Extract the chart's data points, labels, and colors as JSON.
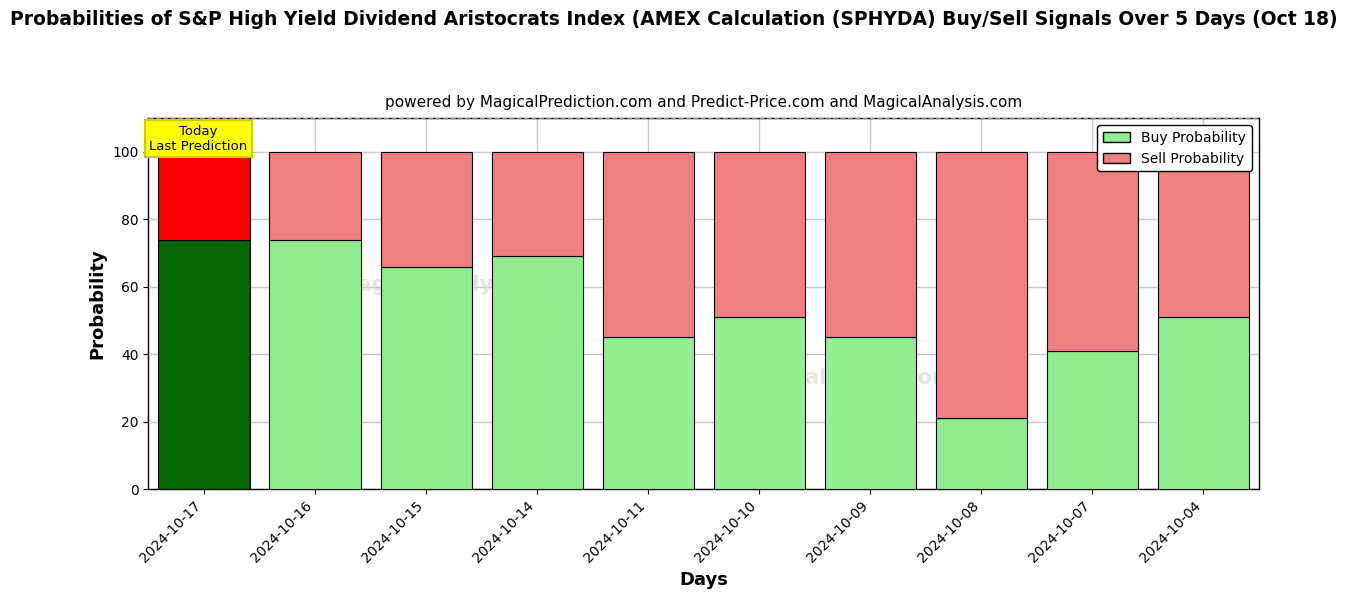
{
  "title": "Probabilities of S&P High Yield Dividend Aristocrats Index (AMEX Calculation (SPHYDA) Buy/Sell Signals Over 5 Days (Oct 18)",
  "subtitle": "powered by MagicalPrediction.com and Predict-Price.com and MagicalAnalysis.com",
  "xlabel": "Days",
  "ylabel": "Probability",
  "dates": [
    "2024-10-17",
    "2024-10-16",
    "2024-10-15",
    "2024-10-14",
    "2024-10-11",
    "2024-10-10",
    "2024-10-09",
    "2024-10-08",
    "2024-10-07",
    "2024-10-04"
  ],
  "buy_values": [
    74,
    74,
    66,
    69,
    45,
    51,
    45,
    21,
    41,
    51
  ],
  "sell_values": [
    26,
    26,
    34,
    31,
    55,
    49,
    55,
    79,
    59,
    49
  ],
  "buy_color_today": "#006400",
  "sell_color_today": "#ff0000",
  "buy_color_normal": "#90EE90",
  "sell_color_normal": "#F08080",
  "bar_edge_color": "#000000",
  "ylim": [
    0,
    110
  ],
  "yticks": [
    0,
    20,
    40,
    60,
    80,
    100
  ],
  "grid_color": "#c8c8c8",
  "bg_color": "#ffffff",
  "plot_bg_color": "#ffffff",
  "annotation_box_color": "#ffff00",
  "annotation_text": "Today\nLast Prediction",
  "legend_buy_label": "Buy Probability",
  "legend_sell_label": "Sell Probability",
  "dashed_line_y": 110,
  "title_fontsize": 13.5,
  "subtitle_fontsize": 11,
  "axis_label_fontsize": 13,
  "tick_fontsize": 10,
  "legend_fontsize": 10,
  "bar_width": 0.82
}
